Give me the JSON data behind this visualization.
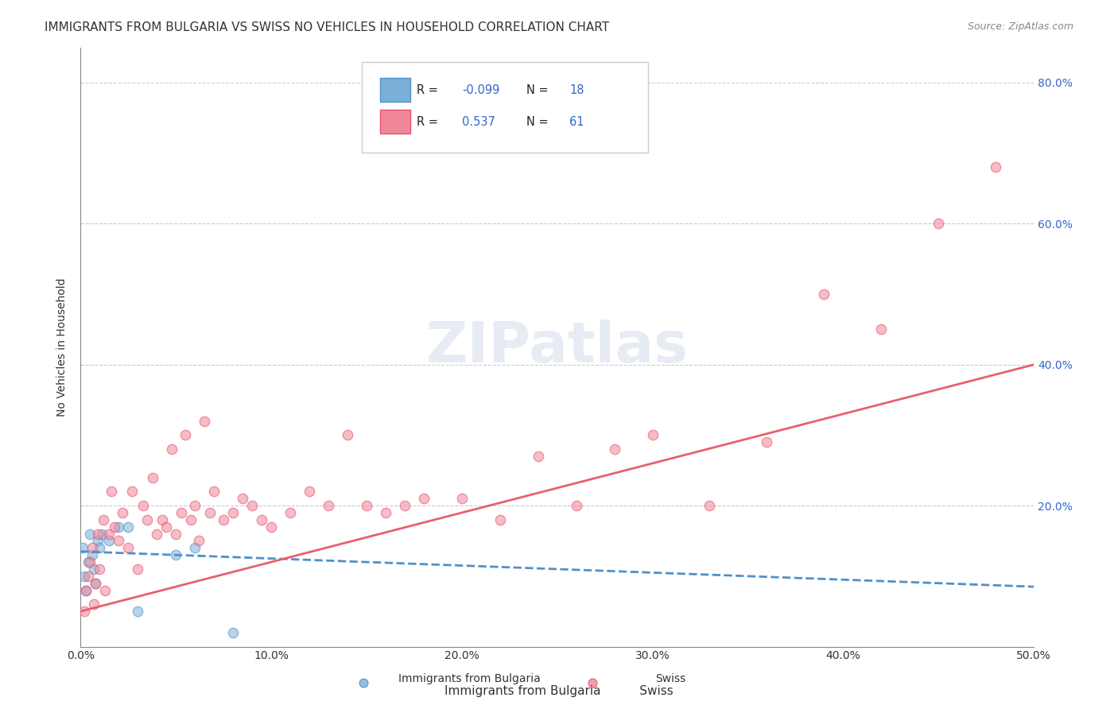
{
  "title": "IMMIGRANTS FROM BULGARIA VS SWISS NO VEHICLES IN HOUSEHOLD CORRELATION CHART",
  "source": "Source: ZipAtlas.com",
  "xlabel_bottom": "",
  "ylabel": "No Vehicles in Household",
  "xlim": [
    0.0,
    0.5
  ],
  "ylim": [
    0.0,
    0.85
  ],
  "xtick_labels": [
    "0.0%",
    "10.0%",
    "20.0%",
    "30.0%",
    "40.0%",
    "50.0%"
  ],
  "xtick_values": [
    0.0,
    0.1,
    0.2,
    0.3,
    0.4,
    0.5
  ],
  "ytick_labels": [
    "20.0%",
    "40.0%",
    "60.0%",
    "80.0%"
  ],
  "ytick_values": [
    0.2,
    0.4,
    0.6,
    0.8
  ],
  "legend_items": [
    {
      "label": "R = -0.099   N = 18",
      "color": "#a8c4e0"
    },
    {
      "label": "R =  0.537   N = 61",
      "color": "#f4a0b0"
    }
  ],
  "watermark": "ZIPatlas",
  "scatter_blue": {
    "x": [
      0.001,
      0.002,
      0.003,
      0.004,
      0.005,
      0.006,
      0.007,
      0.008,
      0.009,
      0.01,
      0.011,
      0.015,
      0.02,
      0.025,
      0.03,
      0.05,
      0.06,
      0.08
    ],
    "y": [
      0.14,
      0.1,
      0.08,
      0.12,
      0.16,
      0.13,
      0.11,
      0.09,
      0.15,
      0.14,
      0.16,
      0.15,
      0.17,
      0.17,
      0.05,
      0.13,
      0.14,
      0.02
    ]
  },
  "scatter_pink": {
    "x": [
      0.002,
      0.003,
      0.004,
      0.005,
      0.006,
      0.007,
      0.008,
      0.009,
      0.01,
      0.012,
      0.013,
      0.015,
      0.016,
      0.018,
      0.02,
      0.022,
      0.025,
      0.027,
      0.03,
      0.033,
      0.035,
      0.038,
      0.04,
      0.043,
      0.045,
      0.048,
      0.05,
      0.053,
      0.055,
      0.058,
      0.06,
      0.062,
      0.065,
      0.068,
      0.07,
      0.075,
      0.08,
      0.085,
      0.09,
      0.095,
      0.1,
      0.11,
      0.12,
      0.13,
      0.14,
      0.15,
      0.16,
      0.17,
      0.18,
      0.2,
      0.22,
      0.24,
      0.26,
      0.28,
      0.3,
      0.33,
      0.36,
      0.39,
      0.42,
      0.45,
      0.48
    ],
    "y": [
      0.05,
      0.08,
      0.1,
      0.12,
      0.14,
      0.06,
      0.09,
      0.16,
      0.11,
      0.18,
      0.08,
      0.16,
      0.22,
      0.17,
      0.15,
      0.19,
      0.14,
      0.22,
      0.11,
      0.2,
      0.18,
      0.24,
      0.16,
      0.18,
      0.17,
      0.28,
      0.16,
      0.19,
      0.3,
      0.18,
      0.2,
      0.15,
      0.32,
      0.19,
      0.22,
      0.18,
      0.19,
      0.21,
      0.2,
      0.18,
      0.17,
      0.19,
      0.22,
      0.2,
      0.3,
      0.2,
      0.19,
      0.2,
      0.21,
      0.21,
      0.18,
      0.27,
      0.2,
      0.28,
      0.3,
      0.2,
      0.29,
      0.5,
      0.45,
      0.6,
      0.68
    ]
  },
  "trend_blue": {
    "x": [
      0.0,
      0.5
    ],
    "y": [
      0.135,
      0.085
    ]
  },
  "trend_pink": {
    "x": [
      0.0,
      0.5
    ],
    "y": [
      0.05,
      0.4
    ]
  },
  "dot_size": 80,
  "dot_alpha": 0.55,
  "blue_dot_color": "#7ab0d8",
  "pink_dot_color": "#f08898",
  "blue_line_color": "#5090c8",
  "pink_line_color": "#e8606e",
  "grid_color": "#cccccc",
  "background_color": "#ffffff",
  "title_fontsize": 11,
  "axis_label_fontsize": 10,
  "tick_fontsize": 10,
  "legend_fontsize": 10
}
